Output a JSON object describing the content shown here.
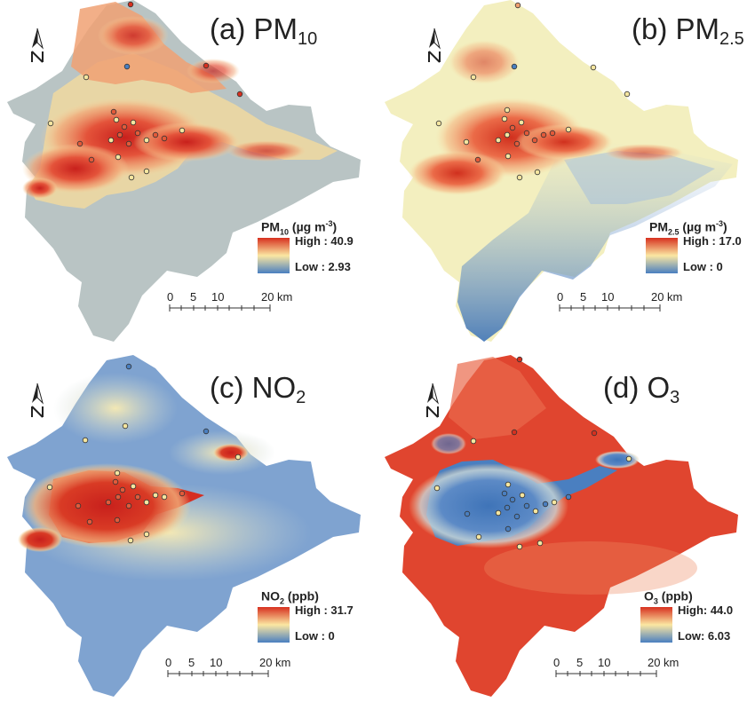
{
  "panels": [
    {
      "id": "pm10",
      "title_main": "(a) PM",
      "title_sub": "10",
      "legend_name": "PM",
      "legend_name_sub": "10",
      "legend_units": " (µg m",
      "legend_units_sup": "-3",
      "legend_units_close": ")",
      "high": "High : 40.9",
      "low": "Low : 2.93",
      "high_color": "#d7301f",
      "low_color": "#4a7fc0",
      "background_color": "#b9c4c4",
      "scale": {
        "t0": "0",
        "t1": "5",
        "t2": "10",
        "t3": "20",
        "unit": "km"
      }
    },
    {
      "id": "pm25",
      "title_main": "(b) PM",
      "title_sub": "2.5",
      "legend_name": "PM",
      "legend_name_sub": "2.5",
      "legend_units": " (µg m",
      "legend_units_sup": "-3",
      "legend_units_close": ")",
      "high": "High : 17.0",
      "low": "Low : 0",
      "high_color": "#d7301f",
      "low_color": "#4a7fc0",
      "background_color": "#f3efbf",
      "scale": {
        "t0": "0",
        "t1": "5",
        "t2": "10",
        "t3": "20",
        "unit": "km"
      }
    },
    {
      "id": "no2",
      "title_main": "(c) NO",
      "title_sub": "2",
      "legend_name": "NO",
      "legend_name_sub": "2",
      "legend_units": " (ppb)",
      "legend_units_sup": "",
      "legend_units_close": "",
      "high": "High : 31.7",
      "low": "Low : 0",
      "high_color": "#d7301f",
      "low_color": "#4a7fc0",
      "background_color": "#7fa3d0",
      "scale": {
        "t0": "0",
        "t1": "5",
        "t2": "10",
        "t3": "20",
        "unit": "km"
      }
    },
    {
      "id": "o3",
      "title_main": "(d) O",
      "title_sub": "3",
      "legend_name": "O",
      "legend_name_sub": "3",
      "legend_units": " (ppb)",
      "legend_units_sup": "",
      "legend_units_close": "",
      "high": "High: 44.0",
      "low": "Low: 6.03",
      "high_color": "#d7301f",
      "low_color": "#4a7fc0",
      "background_color": "#e0452f",
      "scale": {
        "t0": "0",
        "t1": "5",
        "t2": "10",
        "t3": "20",
        "unit": "km"
      }
    }
  ],
  "north_arrow_icon": "north-arrow-icon"
}
